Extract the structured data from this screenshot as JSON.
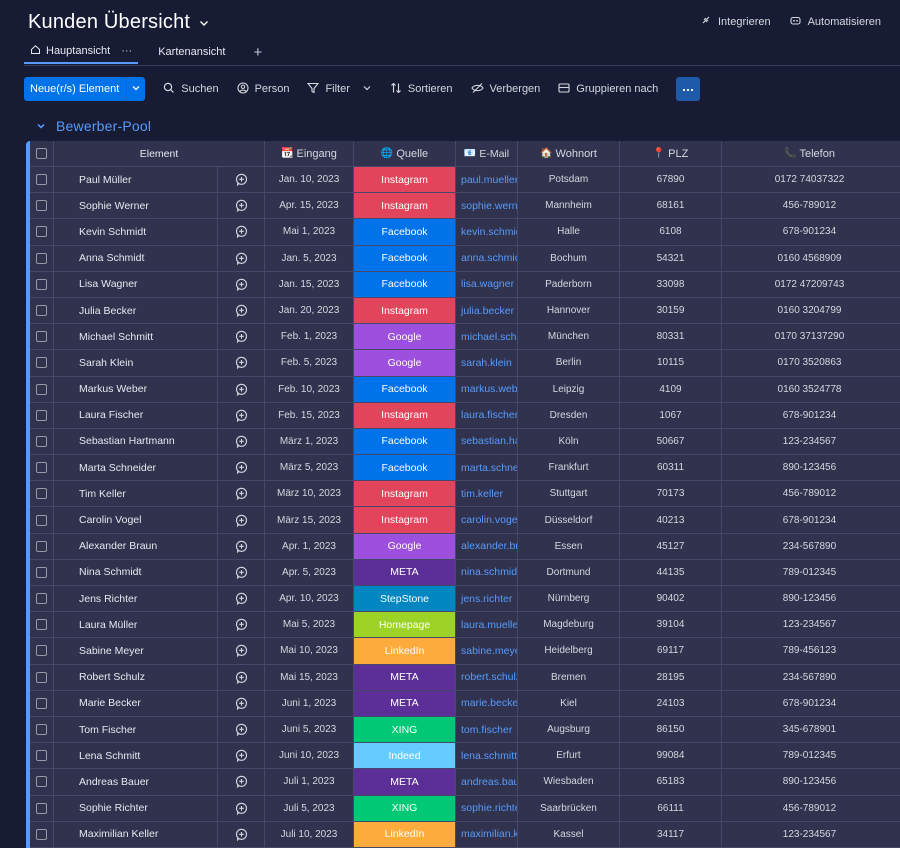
{
  "board": {
    "title": "Kunden Übersicht"
  },
  "top_actions": {
    "integrate": "Integrieren",
    "automate": "Automatisieren"
  },
  "tabs": [
    {
      "label": "Hauptansicht",
      "dots": "···"
    },
    {
      "label": "Kartenansicht"
    }
  ],
  "tab_add": "+",
  "toolbar": {
    "new_item": "Neue(r/s) Element",
    "search": "Suchen",
    "person": "Person",
    "filter": "Filter",
    "sort": "Sortieren",
    "hide": "Verbergen",
    "group_by": "Gruppieren nach"
  },
  "group": {
    "title": "Bewerber-Pool",
    "color": "#579bfc"
  },
  "columns": {
    "element": "Element",
    "eingang": "Eingang",
    "quelle": "Quelle",
    "email": "E-Mail",
    "wohnort": "Wohnort",
    "plz": "PLZ",
    "telefon": "Telefon"
  },
  "column_icons": {
    "eingang": "📆",
    "quelle": "🌐",
    "email": "📧",
    "wohnort": "🏠",
    "plz": "📍",
    "telefon": "📞"
  },
  "source_colors": {
    "Instagram": "#e2445c",
    "Facebook": "#0073ea",
    "Google": "#9d50dd",
    "META": "#5c2e97",
    "StepStone": "#0086c0",
    "Homepage": "#9cd326",
    "LinkedIn": "#fdab3d",
    "XING": "#00c875",
    "Indeed": "#66ccff"
  },
  "rows": [
    {
      "name": "Paul Müller",
      "date": "Jan. 10, 2023",
      "source": "Instagram",
      "email": "paul.mueller",
      "city": "Potsdam",
      "plz": "67890",
      "phone": "0172 74037322"
    },
    {
      "name": "Sophie Werner",
      "date": "Apr. 15, 2023",
      "source": "Instagram",
      "email": "sophie.werner",
      "city": "Mannheim",
      "plz": "68161",
      "phone": "456-789012"
    },
    {
      "name": "Kevin Schmidt",
      "date": "Mai 1, 2023",
      "source": "Facebook",
      "email": "kevin.schmidt",
      "city": "Halle",
      "plz": "6108",
      "phone": "678-901234"
    },
    {
      "name": "Anna Schmidt",
      "date": "Jan. 5, 2023",
      "source": "Facebook",
      "email": "anna.schmidt",
      "city": "Bochum",
      "plz": "54321",
      "phone": "0160 4568909"
    },
    {
      "name": "Lisa Wagner",
      "date": "Jan. 15, 2023",
      "source": "Facebook",
      "email": "lisa.wagner",
      "city": "Paderborn",
      "plz": "33098",
      "phone": "0172 47209743"
    },
    {
      "name": "Julia Becker",
      "date": "Jan. 20, 2023",
      "source": "Instagram",
      "email": "julia.becker",
      "city": "Hannover",
      "plz": "30159",
      "phone": "0160 3204799"
    },
    {
      "name": "Michael Schmitt",
      "date": "Feb. 1, 2023",
      "source": "Google",
      "email": "michael.schmitt",
      "city": "München",
      "plz": "80331",
      "phone": "0170 37137290"
    },
    {
      "name": "Sarah Klein",
      "date": "Feb. 5, 2023",
      "source": "Google",
      "email": "sarah.klein",
      "city": "Berlin",
      "plz": "10115",
      "phone": "0170 3520863"
    },
    {
      "name": "Markus Weber",
      "date": "Feb. 10, 2023",
      "source": "Facebook",
      "email": "markus.weber",
      "city": "Leipzig",
      "plz": "4109",
      "phone": "0160 3524778"
    },
    {
      "name": "Laura Fischer",
      "date": "Feb. 15, 2023",
      "source": "Instagram",
      "email": "laura.fischer",
      "city": "Dresden",
      "plz": "1067",
      "phone": "678-901234"
    },
    {
      "name": "Sebastian Hartmann",
      "date": "März 1, 2023",
      "source": "Facebook",
      "email": "sebastian.hartmann",
      "city": "Köln",
      "plz": "50667",
      "phone": "123-234567"
    },
    {
      "name": "Marta Schneider",
      "date": "März 5, 2023",
      "source": "Facebook",
      "email": "marta.schneider",
      "city": "Frankfurt",
      "plz": "60311",
      "phone": "890-123456"
    },
    {
      "name": "Tim Keller",
      "date": "März 10, 2023",
      "source": "Instagram",
      "email": "tim.keller",
      "city": "Stuttgart",
      "plz": "70173",
      "phone": "456-789012"
    },
    {
      "name": "Carolin Vogel",
      "date": "März 15, 2023",
      "source": "Instagram",
      "email": "carolin.vogel",
      "city": "Düsseldorf",
      "plz": "40213",
      "phone": "678-901234"
    },
    {
      "name": "Alexander Braun",
      "date": "Apr. 1, 2023",
      "source": "Google",
      "email": "alexander.braun",
      "city": "Essen",
      "plz": "45127",
      "phone": "234-567890"
    },
    {
      "name": "Nina Schmidt",
      "date": "Apr. 5, 2023",
      "source": "META",
      "email": "nina.schmidt",
      "city": "Dortmund",
      "plz": "44135",
      "phone": "789-012345"
    },
    {
      "name": "Jens Richter",
      "date": "Apr. 10, 2023",
      "source": "StepStone",
      "email": "jens.richter",
      "city": "Nürnberg",
      "plz": "90402",
      "phone": "890-123456"
    },
    {
      "name": "Laura Müller",
      "date": "Mai 5, 2023",
      "source": "Homepage",
      "email": "laura.mueller",
      "city": "Magdeburg",
      "plz": "39104",
      "phone": "123-234567"
    },
    {
      "name": "Sabine Meyer",
      "date": "Mai 10, 2023",
      "source": "LinkedIn",
      "email": "sabine.meyer",
      "city": "Heidelberg",
      "plz": "69117",
      "phone": "789-456123"
    },
    {
      "name": "Robert Schulz",
      "date": "Mai 15, 2023",
      "source": "META",
      "email": "robert.schulz",
      "city": "Bremen",
      "plz": "28195",
      "phone": "234-567890"
    },
    {
      "name": "Marie Becker",
      "date": "Juni 1, 2023",
      "source": "META",
      "email": "marie.becker",
      "city": "Kiel",
      "plz": "24103",
      "phone": "678-901234"
    },
    {
      "name": "Tom Fischer",
      "date": "Juni 5, 2023",
      "source": "XING",
      "email": "tom.fischer",
      "city": "Augsburg",
      "plz": "86150",
      "phone": "345-678901"
    },
    {
      "name": "Lena Schmitt",
      "date": "Juni 10, 2023",
      "source": "Indeed",
      "email": "lena.schmitt",
      "city": "Erfurt",
      "plz": "99084",
      "phone": "789-012345"
    },
    {
      "name": "Andreas Bauer",
      "date": "Juli 1, 2023",
      "source": "META",
      "email": "andreas.bauer",
      "city": "Wiesbaden",
      "plz": "65183",
      "phone": "890-123456"
    },
    {
      "name": "Sophie Richter",
      "date": "Juli 5, 2023",
      "source": "XING",
      "email": "sophie.richter",
      "city": "Saarbrücken",
      "plz": "66111",
      "phone": "456-789012"
    },
    {
      "name": "Maximilian Keller",
      "date": "Juli 10, 2023",
      "source": "LinkedIn",
      "email": "maximilian.keller",
      "city": "Kassel",
      "plz": "34117",
      "phone": "123-234567"
    }
  ]
}
